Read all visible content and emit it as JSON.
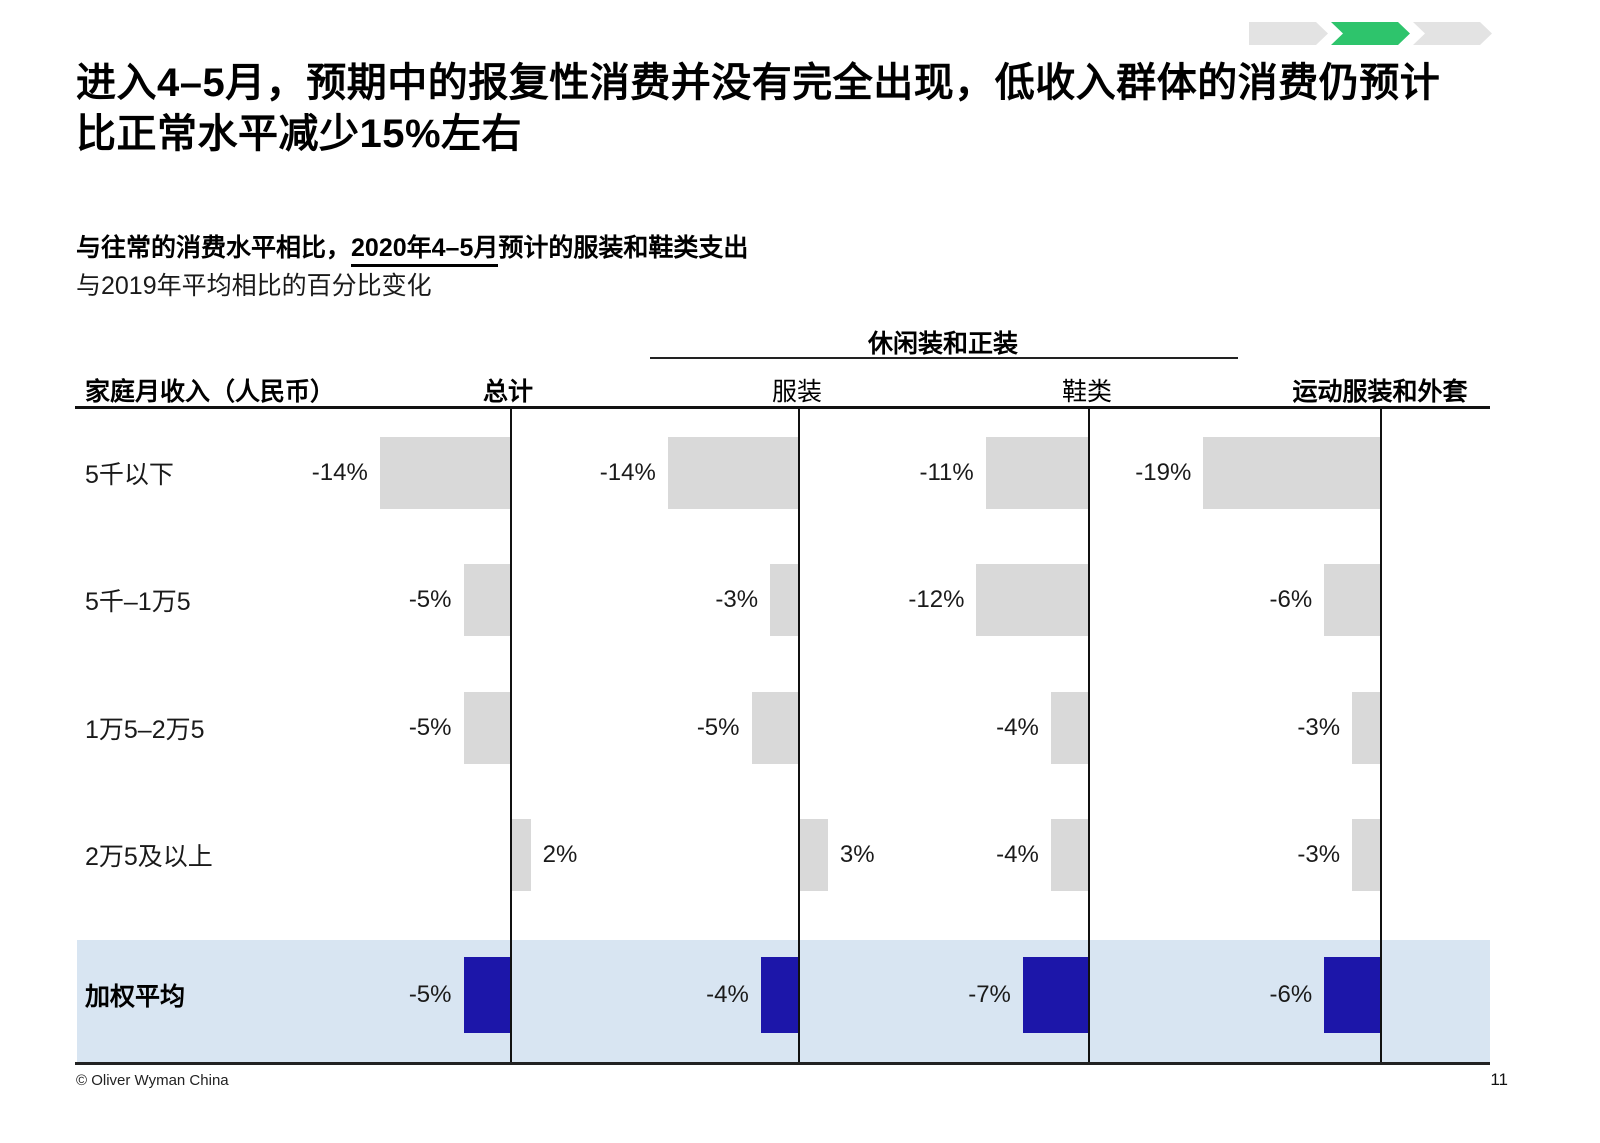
{
  "slide": {
    "title_line1": "进入4–5月，预期中的报复性消费并没有完全出现，低收入群体的消费仍预计",
    "title_line2": "比正常水平减少15%左右",
    "subtitle_bold_prefix": "与往常的消费水平相比，",
    "subtitle_underlined": "2020年4–5月",
    "subtitle_bold_suffix": "预计的服装和鞋类支出",
    "subtitle_line2": "与2019年平均相比的百分比变化"
  },
  "progress_tracker": {
    "steps": [
      {
        "state": "inactive"
      },
      {
        "state": "active"
      },
      {
        "state": "inactive"
      }
    ]
  },
  "chart_data": {
    "type": "bar",
    "title": "与往常的消费水平相比，2020年4–5月预计的服装和鞋类支出",
    "subtitle": "与2019年平均相比的百分比变化",
    "row_header": "家庭月收入（人民币）",
    "group_header": {
      "label": "休闲装和正装",
      "spans_columns": [
        1,
        2
      ]
    },
    "columns": [
      {
        "label": "总计",
        "bold": true
      },
      {
        "label": "服装",
        "bold": false
      },
      {
        "label": "鞋类",
        "bold": false
      },
      {
        "label": "运动服装和外套",
        "bold": true
      }
    ],
    "categories": [
      "5千以下",
      "5千–1万5",
      "1万5–2万5",
      "2万5及以上",
      "加权平均"
    ],
    "rows": [
      {
        "label": "5千以下",
        "values": [
          -14,
          -14,
          -11,
          -19
        ],
        "highlight": false
      },
      {
        "label": "5千–1万5",
        "values": [
          -5,
          -3,
          -12,
          -6
        ],
        "highlight": false
      },
      {
        "label": "1万5–2万5",
        "values": [
          -5,
          -5,
          -4,
          -3
        ],
        "highlight": false
      },
      {
        "label": "2万5及以上",
        "values": [
          2,
          3,
          -4,
          -3
        ],
        "highlight": false
      },
      {
        "label": "加权平均",
        "values": [
          -5,
          -4,
          -7,
          -6
        ],
        "highlight": true
      }
    ],
    "unit": "%",
    "value_format": "signed integer percent",
    "xlim_percent": [
      -20,
      5
    ],
    "legend": null,
    "grid": "vertical zero-axes per column"
  },
  "colors": {
    "bar_gray": "#D9D9D9",
    "bar_highlight": "#1C16A9",
    "highlight_row_bg": "#D8E5F2",
    "chevron_active": "#2EC46C",
    "chevron_inactive": "#E3E3E3"
  },
  "footer": {
    "copyright": "© Oliver Wyman China",
    "page_number": "11"
  }
}
